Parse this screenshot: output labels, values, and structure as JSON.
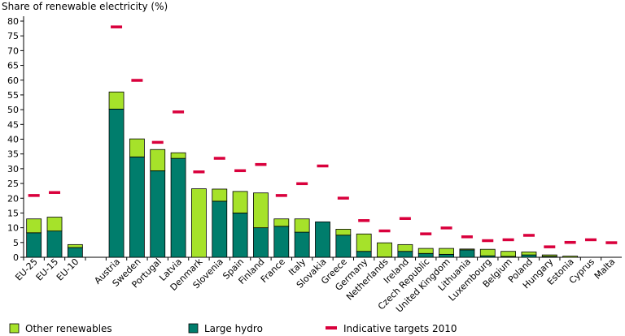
{
  "chart_data": {
    "type": "bar",
    "title": "",
    "ylabel": "Share of renewable electricity (%)",
    "xlabel": "",
    "ylim": [
      0,
      80
    ],
    "yticks": [
      0,
      5,
      10,
      15,
      20,
      25,
      30,
      35,
      40,
      45,
      50,
      55,
      60,
      65,
      70,
      75,
      80
    ],
    "grid": false,
    "stacked": true,
    "legend_position": "bottom",
    "colors": {
      "Other renewables": "#a6e22a",
      "Large hydro": "#007d6c",
      "Indicative targets 2010": "#d9003c",
      "bar_outline": "#000000"
    },
    "categories": [
      "EU-25",
      "EU-15",
      "EU-10",
      "",
      "Austria",
      "Sweden",
      "Portugal",
      "Latvia",
      "Denmark",
      "Slovenia",
      "Spain",
      "Finland",
      "France",
      "Italy",
      "Slovakia",
      "Greece",
      "Germany",
      "Netherlands",
      "Ireland",
      "Czech Republic",
      "United Kingdom",
      "Lithuania",
      "Luxembourg",
      "Belgium",
      "Poland",
      "Hungary",
      "Estonia",
      "Cyprus",
      "Malta"
    ],
    "series": [
      {
        "name": "Large hydro",
        "kind": "bar",
        "values": [
          8.3,
          8.9,
          3.3,
          null,
          50.2,
          34.0,
          29.3,
          33.5,
          0.0,
          19.0,
          15.0,
          10.0,
          10.5,
          8.5,
          12.0,
          7.5,
          2.0,
          0.1,
          2.0,
          1.3,
          1.0,
          2.5,
          0.5,
          0.3,
          0.8,
          0.3,
          0.0,
          0.0,
          0.0
        ]
      },
      {
        "name": "Other renewables",
        "kind": "bar",
        "values": [
          4.7,
          4.7,
          1.0,
          null,
          5.8,
          6.1,
          7.2,
          1.9,
          23.2,
          4.1,
          7.3,
          11.8,
          2.5,
          4.5,
          0.0,
          2.0,
          5.9,
          4.8,
          2.3,
          1.7,
          2.0,
          0.3,
          2.2,
          1.7,
          1.0,
          0.5,
          0.4,
          0.0,
          0.0
        ]
      },
      {
        "name": "Indicative targets 2010",
        "kind": "marker",
        "values": [
          21.0,
          22.0,
          null,
          null,
          78.1,
          60.0,
          39.0,
          49.3,
          29.0,
          33.6,
          29.4,
          31.5,
          21.0,
          25.0,
          31.0,
          20.1,
          12.5,
          9.0,
          13.2,
          8.0,
          10.0,
          7.0,
          5.7,
          6.0,
          7.5,
          3.6,
          5.1,
          6.0,
          5.0
        ]
      }
    ]
  }
}
